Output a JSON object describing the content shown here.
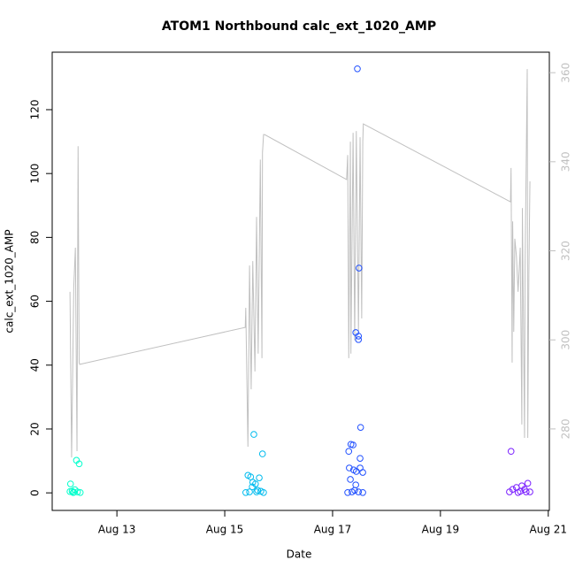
{
  "chart_data": {
    "type": "scatter",
    "title": "ATOM1 Northbound calc_ext_1020_AMP",
    "xlabel": "Date",
    "ylabel": "calc_ext_1020_AMP",
    "xlim": [
      11.8,
      21.02
    ],
    "ylim": [
      -5.5,
      138
    ],
    "y2lim": [
      261.7,
      364.6
    ],
    "xticks": [
      {
        "value": 13,
        "label": "Aug 13"
      },
      {
        "value": 15,
        "label": "Aug 15"
      },
      {
        "value": 17,
        "label": "Aug 17"
      },
      {
        "value": 19,
        "label": "Aug 19"
      },
      {
        "value": 21,
        "label": "Aug 21"
      }
    ],
    "yticks": [
      0,
      20,
      40,
      60,
      80,
      100,
      120
    ],
    "y2ticks": [
      280,
      300,
      320,
      340,
      360
    ],
    "series": [
      {
        "color": "#00ffcc",
        "x": [
          12.14,
          12.17,
          12.2,
          12.25,
          12.3,
          12.27,
          12.32,
          12.13,
          12.22,
          12.19
        ],
        "values": [
          2.8,
          0.5,
          0.2,
          10.2,
          9.1,
          0.3,
          0.1,
          0.4,
          1.0,
          0.1
        ]
      },
      {
        "color": "#00bbee",
        "x": [
          15.43,
          15.48,
          15.54,
          15.7,
          15.64,
          15.51,
          15.57,
          15.61,
          15.39,
          15.67,
          15.46,
          15.59,
          15.72,
          15.52
        ],
        "values": [
          5.5,
          5.0,
          18.3,
          12.2,
          4.7,
          1.9,
          2.8,
          0.8,
          0.1,
          0.5,
          0.3,
          0.3,
          0.1,
          3.3
        ]
      },
      {
        "color": "#1f4fff",
        "x": [
          17.46,
          17.49,
          17.43,
          17.48,
          17.48,
          17.52,
          17.34,
          17.38,
          17.51,
          17.3,
          17.51,
          17.56,
          17.31,
          17.39,
          17.44,
          17.33,
          17.43,
          17.28,
          17.36,
          17.48,
          17.56,
          17.41
        ],
        "values": [
          132.8,
          70.4,
          50.2,
          49.1,
          48.0,
          20.5,
          15.2,
          15.0,
          10.8,
          13.0,
          7.8,
          6.4,
          7.8,
          7.2,
          6.7,
          4.2,
          2.5,
          0.1,
          0.3,
          0.3,
          0.1,
          0.8
        ]
      },
      {
        "color": "#7a1fff",
        "x": [
          20.31,
          20.34,
          20.41,
          20.51,
          20.62,
          20.56,
          20.28,
          20.44,
          20.66,
          20.59,
          20.48
        ],
        "values": [
          13.0,
          1.1,
          1.7,
          2.2,
          3.0,
          1.1,
          0.3,
          0.1,
          0.3,
          0.3,
          0.5
        ]
      },
      {
        "type": "line",
        "axis": "y2",
        "color": "#c0c0c0",
        "x": [
          12.13,
          12.16,
          12.2,
          12.23,
          12.26,
          12.28,
          12.3,
          12.31,
          15.38,
          15.39,
          15.43,
          15.46,
          15.49,
          15.52,
          15.56,
          15.59,
          15.62,
          15.66,
          15.69,
          15.7,
          15.72,
          15.74,
          17.26,
          17.28,
          17.3,
          17.33,
          17.34,
          17.38,
          17.41,
          17.44,
          17.48,
          17.51,
          17.54,
          17.56,
          17.57,
          20.3,
          20.31,
          20.33,
          20.34,
          20.36,
          20.38,
          20.41,
          20.44,
          20.48,
          20.51,
          20.52,
          20.56,
          20.57,
          20.61,
          20.62,
          20.64,
          20.66
        ],
        "values": [
          310.8,
          273.6,
          311.8,
          320.7,
          275.0,
          343.5,
          294.9,
          294.5,
          302.8,
          307.2,
          276.0,
          316.7,
          288.9,
          317.7,
          292.9,
          327.6,
          296.9,
          340.5,
          295.9,
          342.1,
          346.1,
          346.1,
          336.0,
          341.5,
          295.9,
          344.5,
          296.9,
          346.5,
          299.9,
          346.9,
          301.8,
          345.5,
          304.8,
          344.5,
          348.5,
          331.0,
          338.6,
          294.9,
          326.6,
          301.8,
          322.7,
          318.7,
          310.8,
          320.7,
          281.0,
          329.6,
          278.0,
          316.7,
          360.8,
          278.0,
          314.7,
          335.6
        ]
      }
    ]
  }
}
